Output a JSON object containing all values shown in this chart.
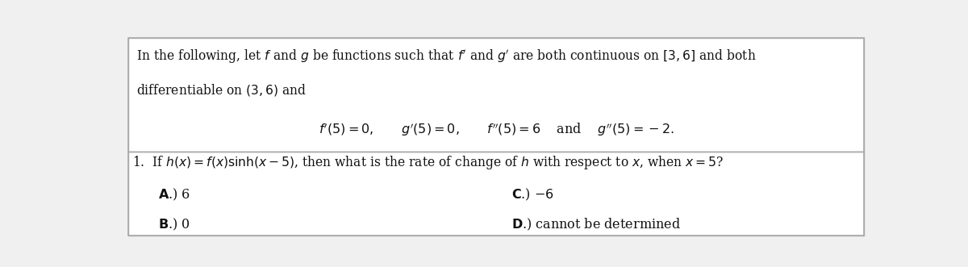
{
  "bg_color": "#f0f0f0",
  "white_box_color": "#ffffff",
  "border_color": "#aaaaaa",
  "text_color": "#111111",
  "preamble_line1": "In the following, let $f$ and $g$ be functions such that $f'$ and $g'$ are both continuous on $[3, 6]$ and both",
  "preamble_line2": "differentiable on $(3, 6)$ and",
  "conditions": "$f'(5) = 0, \\quad\\quad g'(5) = 0, \\quad\\quad f''(5) = 6 \\quad$ and $\\quad g''(5) = -2.$",
  "question": "1.  If $h(x) = f(x)\\sinh(x - 5)$, then what is the rate of change of $h$ with respect to $x$, when $x = 5$?",
  "choice_A": "$\\mathbf{A}$.) 6",
  "choice_B": "$\\mathbf{B}$.) 0",
  "choice_C": "$\\mathbf{C}$.) $-6$",
  "choice_D": "$\\mathbf{D}$.) cannot be determined",
  "fig_width": 12.0,
  "fig_height": 3.31,
  "dpi": 100
}
